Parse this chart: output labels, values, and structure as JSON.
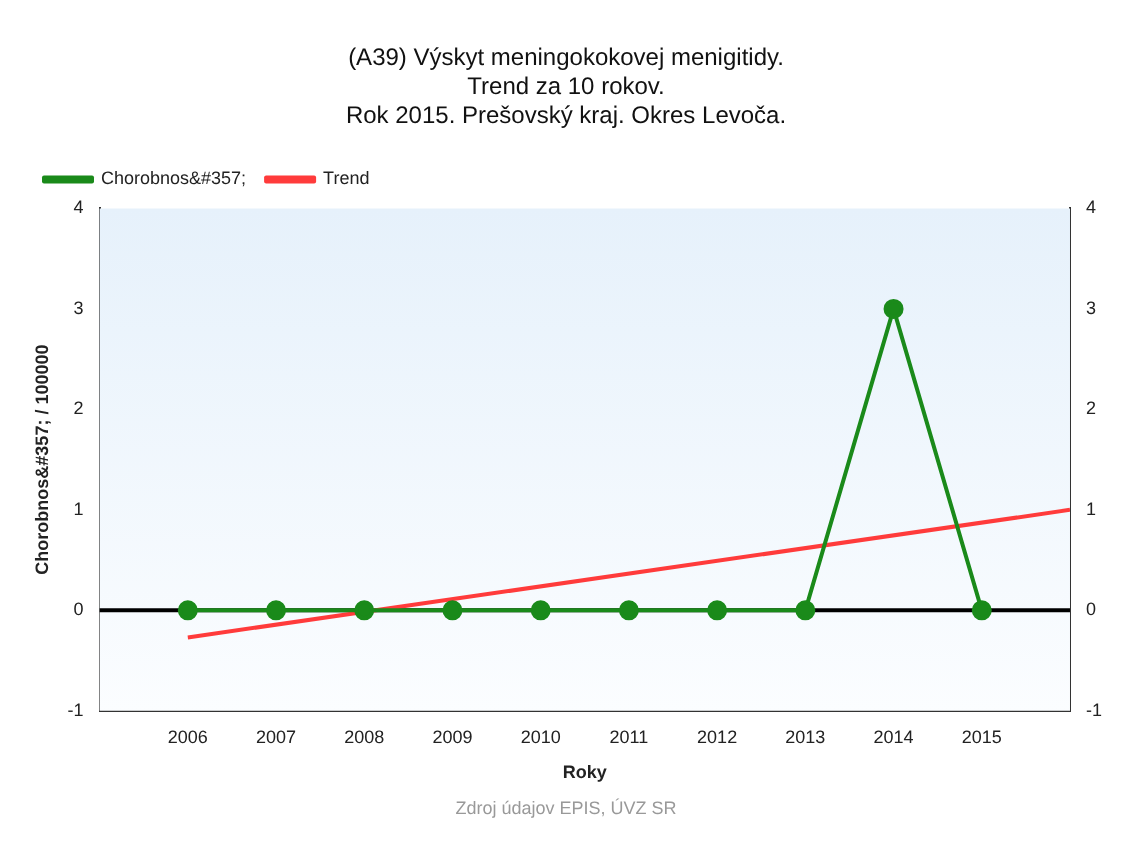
{
  "chart_data": {
    "type": "line",
    "title": "(A39) Výskyt meningokokovej menigitidy.\nTrend za 10 rokov.\nRok 2015. Prešovský kraj. Okres Levoča.",
    "xlabel": "Roky",
    "ylabel": "Chorobnos&#357; / 100000",
    "annotations": [
      "Zdroj údajov EPIS, ÚVZ SR"
    ],
    "x": [
      2006,
      2007,
      2008,
      2009,
      2010,
      2011,
      2012,
      2013,
      2014,
      2015
    ],
    "series": [
      {
        "name": "Chorobnos&#357;",
        "color": "#1a8a1a",
        "values": [
          0,
          0,
          0,
          0,
          0,
          0,
          0,
          0,
          3,
          0
        ],
        "marker": "circle"
      },
      {
        "name": "Trend",
        "type": "line",
        "color": "#ff3b3b",
        "x": [
          2006,
          2016
        ],
        "values": [
          -0.27,
          1.0
        ],
        "marker": "none"
      }
    ],
    "xlim": [
      2005,
      2016
    ],
    "xticks": [
      2006,
      2007,
      2008,
      2009,
      2010,
      2011,
      2012,
      2013,
      2014,
      2015
    ],
    "ylim": [
      -1,
      4
    ],
    "yticks": [
      -1,
      0,
      1,
      2,
      3,
      4
    ],
    "y2lim": [
      -1,
      4
    ],
    "y2ticks": [
      -1,
      0,
      1,
      2,
      3,
      4
    ],
    "ref_lines": [
      {
        "axis": "y",
        "value": 0,
        "color": "#000000"
      }
    ],
    "grid": false,
    "legend": "top left"
  }
}
